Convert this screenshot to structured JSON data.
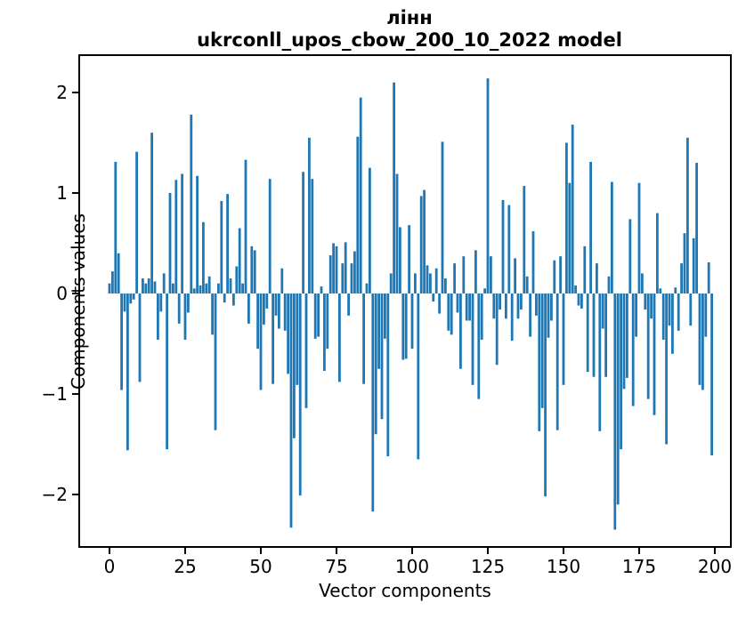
{
  "figure": {
    "title_line1": "лінн",
    "title_line2": "ukrconll_upos_cbow_200_10_2022 model",
    "xlabel": "Vector components",
    "ylabel": "Components values"
  },
  "chart_data": {
    "type": "bar",
    "title": "лінн\nukrconll_upos_cbow_200_10_2022 model",
    "xlabel": "Vector components",
    "ylabel": "Components values",
    "bar_color": "#1f77b4",
    "axis_color": "#000000",
    "grid": false,
    "legend": "none",
    "x_start": 0,
    "x_ticks": [
      0,
      25,
      50,
      75,
      100,
      125,
      150,
      175,
      200
    ],
    "y_ticks": [
      -2,
      -1,
      0,
      1,
      2
    ],
    "xlim": [
      -10,
      205
    ],
    "ylim": [
      -2.52,
      2.37
    ],
    "values": [
      0.1,
      0.22,
      1.31,
      0.4,
      -0.96,
      -0.18,
      -1.56,
      -0.1,
      -0.06,
      1.41,
      -0.88,
      0.15,
      0.1,
      0.15,
      1.6,
      0.12,
      -0.46,
      -0.18,
      0.2,
      -1.55,
      1.0,
      0.1,
      1.13,
      -0.3,
      1.19,
      -0.46,
      -0.19,
      1.78,
      0.05,
      1.17,
      0.08,
      0.71,
      0.1,
      0.17,
      -0.41,
      -1.36,
      0.1,
      0.92,
      -0.09,
      0.99,
      0.15,
      -0.12,
      0.27,
      0.65,
      0.1,
      1.33,
      -0.3,
      0.47,
      0.43,
      -0.55,
      -0.96,
      -0.31,
      -0.15,
      1.14,
      -0.9,
      -0.22,
      -0.35,
      0.25,
      -0.37,
      -0.8,
      -2.33,
      -1.44,
      -0.91,
      -2.01,
      1.21,
      -1.14,
      1.55,
      1.14,
      -0.45,
      -0.43,
      0.07,
      -0.77,
      -0.55,
      0.38,
      0.5,
      0.47,
      -0.88,
      0.3,
      0.51,
      -0.22,
      0.3,
      0.42,
      1.56,
      1.95,
      -0.9,
      0.1,
      1.25,
      -2.17,
      -1.4,
      -0.75,
      -1.25,
      -0.45,
      -1.62,
      0.2,
      2.1,
      1.19,
      0.66,
      -0.66,
      -0.65,
      0.68,
      -0.55,
      0.2,
      -1.65,
      0.97,
      1.03,
      0.28,
      0.2,
      -0.08,
      0.25,
      -0.2,
      1.51,
      0.15,
      -0.37,
      -0.41,
      0.3,
      -0.19,
      -0.75,
      0.37,
      -0.27,
      -0.27,
      -0.91,
      0.43,
      -1.05,
      -0.46,
      0.05,
      2.14,
      0.37,
      -0.25,
      -0.71,
      -0.16,
      0.93,
      -0.25,
      0.88,
      -0.47,
      0.35,
      -0.25,
      -0.16,
      1.07,
      0.17,
      -0.43,
      0.62,
      -0.22,
      -1.37,
      -1.14,
      -2.02,
      -0.44,
      -0.27,
      0.33,
      -1.36,
      0.37,
      -0.91,
      1.5,
      1.1,
      1.68,
      0.08,
      -0.12,
      -0.15,
      0.47,
      -0.78,
      1.31,
      -0.83,
      0.3,
      -1.37,
      -0.35,
      -0.83,
      0.17,
      1.11,
      -2.35,
      -2.1,
      -1.55,
      -0.95,
      -0.84,
      0.74,
      -1.12,
      -0.43,
      1.1,
      0.2,
      -0.16,
      -1.05,
      -0.25,
      -1.21,
      0.8,
      0.05,
      -0.46,
      -1.5,
      -0.32,
      -0.6,
      0.06,
      -0.37,
      0.3,
      0.6,
      1.55,
      -0.32,
      0.55,
      1.3,
      -0.91,
      -0.96,
      -0.43,
      0.31,
      -1.61
    ]
  }
}
